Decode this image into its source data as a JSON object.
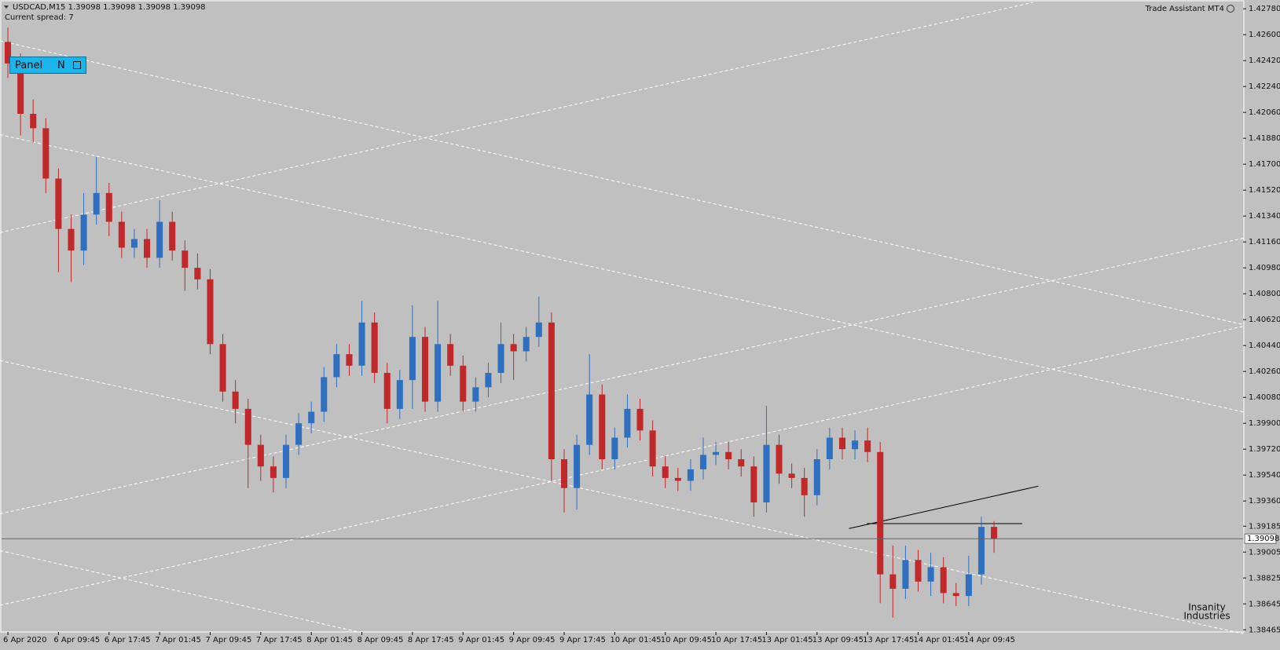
{
  "chart_data": {
    "type": "candlestick",
    "title": "USDCAD,M15  1.39098 1.39098 1.39098 1.39098",
    "subtitle": "Current spread: 7",
    "indicator": "Trade Assistant MT4",
    "panel": {
      "label": "Panel",
      "button": "N"
    },
    "watermark": [
      "Insanity",
      "Industries"
    ],
    "current_price": 1.39098,
    "up_color": "#2f6fc0",
    "down_color": "#c0282a",
    "ylim": [
      1.3845,
      1.4283
    ],
    "yticks": [
      {
        "value": 1.4278,
        "label": "1.42780"
      },
      {
        "value": 1.426,
        "label": "1.42600"
      },
      {
        "value": 1.4242,
        "label": "1.42420"
      },
      {
        "value": 1.4224,
        "label": "1.42240"
      },
      {
        "value": 1.4206,
        "label": "1.42060"
      },
      {
        "value": 1.4188,
        "label": "1.41880"
      },
      {
        "value": 1.417,
        "label": "1.41700"
      },
      {
        "value": 1.4152,
        "label": "1.41520"
      },
      {
        "value": 1.4134,
        "label": "1.41340"
      },
      {
        "value": 1.4116,
        "label": "1.41160"
      },
      {
        "value": 1.4098,
        "label": "1.40980"
      },
      {
        "value": 1.408,
        "label": "1.40800"
      },
      {
        "value": 1.4062,
        "label": "1.40620"
      },
      {
        "value": 1.4044,
        "label": "1.40440"
      },
      {
        "value": 1.4026,
        "label": "1.40260"
      },
      {
        "value": 1.4008,
        "label": "1.40080"
      },
      {
        "value": 1.399,
        "label": "1.39900"
      },
      {
        "value": 1.3972,
        "label": "1.39720"
      },
      {
        "value": 1.3954,
        "label": "1.39540"
      },
      {
        "value": 1.3936,
        "label": "1.39360"
      },
      {
        "value": 1.39185,
        "label": "1.39185"
      },
      {
        "value": 1.39005,
        "label": "1.39005"
      },
      {
        "value": 1.38825,
        "label": "1.38825"
      },
      {
        "value": 1.38645,
        "label": "1.38645"
      },
      {
        "value": 1.38465,
        "label": "1.38465"
      }
    ],
    "xlim": [
      -0.5,
      97.7
    ],
    "xticks": [
      {
        "value": 0,
        "label": "6 Apr 2020"
      },
      {
        "value": 4,
        "label": "6 Apr 09:45"
      },
      {
        "value": 8,
        "label": "6 Apr 17:45"
      },
      {
        "value": 12,
        "label": "7 Apr 01:45"
      },
      {
        "value": 16,
        "label": "7 Apr 09:45"
      },
      {
        "value": 20,
        "label": "7 Apr 17:45"
      },
      {
        "value": 24,
        "label": "8 Apr 01:45"
      },
      {
        "value": 28,
        "label": "8 Apr 09:45"
      },
      {
        "value": 32,
        "label": "8 Apr 17:45"
      },
      {
        "value": 36,
        "label": "9 Apr 01:45"
      },
      {
        "value": 40,
        "label": "9 Apr 09:45"
      },
      {
        "value": 44,
        "label": "9 Apr 17:45"
      },
      {
        "value": 48,
        "label": "10 Apr 01:45"
      },
      {
        "value": 52,
        "label": "10 Apr 09:45"
      },
      {
        "value": 56,
        "label": "10 Apr 17:45"
      },
      {
        "value": 60,
        "label": "13 Apr 01:45"
      },
      {
        "value": 64,
        "label": "13 Apr 09:45"
      },
      {
        "value": 68,
        "label": "13 Apr 17:45"
      },
      {
        "value": 72,
        "label": "14 Apr 01:45"
      },
      {
        "value": 76,
        "label": "14 Apr 09:45"
      }
    ],
    "open": [
      1.4255,
      1.424,
      1.4205,
      1.4195,
      1.416,
      1.4125,
      1.411,
      1.4135,
      1.415,
      1.413,
      1.4112,
      1.4118,
      1.4105,
      1.413,
      1.411,
      1.4098,
      1.409,
      1.4045,
      1.4012,
      1.4,
      1.3975,
      1.396,
      1.3952,
      1.3975,
      1.399,
      1.3998,
      1.4022,
      1.4038,
      1.403,
      1.406,
      1.4025,
      1.4,
      1.402,
      1.405,
      1.4005,
      1.4045,
      1.403,
      1.4005,
      1.4015,
      1.4025,
      1.4045,
      1.404,
      1.405,
      1.406,
      1.3965,
      1.3945,
      1.3975,
      1.401,
      1.3965,
      1.398,
      1.4,
      1.3985,
      1.396,
      1.3952,
      1.395,
      1.3958,
      1.3968,
      1.397,
      1.3965,
      1.396,
      1.3935,
      1.3975,
      1.3955,
      1.3952,
      1.394,
      1.3965,
      1.398,
      1.3972,
      1.3978,
      1.397,
      1.3885,
      1.3875,
      1.3895,
      1.388,
      1.389,
      1.3872,
      1.387,
      1.3885,
      1.3918
    ],
    "high": [
      1.4265,
      1.4247,
      1.4215,
      1.4202,
      1.4167,
      1.4135,
      1.415,
      1.4175,
      1.4157,
      1.4137,
      1.4125,
      1.4125,
      1.4145,
      1.4137,
      1.4117,
      1.4108,
      1.4097,
      1.4052,
      1.402,
      1.4007,
      1.3982,
      1.3967,
      1.3982,
      1.3997,
      1.4005,
      1.4029,
      1.4045,
      1.4045,
      1.4075,
      1.4067,
      1.4032,
      1.4027,
      1.4072,
      1.4057,
      1.4075,
      1.4052,
      1.4037,
      1.4022,
      1.4032,
      1.406,
      1.4052,
      1.4057,
      1.4078,
      1.4067,
      1.3972,
      1.3982,
      1.4038,
      1.4017,
      1.3987,
      1.401,
      1.4007,
      1.3992,
      1.3967,
      1.3959,
      1.3965,
      1.398,
      1.3977,
      1.3977,
      1.3972,
      1.3967,
      1.4002,
      1.3982,
      1.3962,
      1.3959,
      1.3972,
      1.3987,
      1.3987,
      1.3985,
      1.3987,
      1.3977,
      1.3905,
      1.3905,
      1.3902,
      1.39,
      1.3897,
      1.3879,
      1.3898,
      1.3925,
      1.3922
    ],
    "low": [
      1.423,
      1.419,
      1.4185,
      1.415,
      1.4095,
      1.4088,
      1.41,
      1.4128,
      1.412,
      1.4105,
      1.4105,
      1.4098,
      1.4098,
      1.4103,
      1.4082,
      1.4083,
      1.4038,
      1.4005,
      1.399,
      1.3945,
      1.395,
      1.3942,
      1.3945,
      1.3968,
      1.3983,
      1.3991,
      1.4015,
      1.4023,
      1.4023,
      1.4018,
      1.399,
      1.3993,
      1.4,
      1.3998,
      1.3998,
      1.4023,
      1.3998,
      1.3998,
      1.4008,
      1.4018,
      1.402,
      1.4033,
      1.4043,
      1.395,
      1.3928,
      1.393,
      1.3968,
      1.3958,
      1.3958,
      1.3973,
      1.3978,
      1.3953,
      1.3945,
      1.3943,
      1.3943,
      1.3951,
      1.3961,
      1.3958,
      1.3953,
      1.3925,
      1.3928,
      1.3948,
      1.3945,
      1.3925,
      1.3933,
      1.3958,
      1.3965,
      1.3965,
      1.3963,
      1.3865,
      1.3855,
      1.3868,
      1.3873,
      1.387,
      1.3865,
      1.3863,
      1.3863,
      1.3878,
      1.39
    ],
    "close": [
      1.424,
      1.4205,
      1.4195,
      1.416,
      1.4125,
      1.411,
      1.4135,
      1.415,
      1.413,
      1.4112,
      1.4118,
      1.4105,
      1.413,
      1.411,
      1.4098,
      1.409,
      1.4045,
      1.4012,
      1.4,
      1.3975,
      1.396,
      1.3952,
      1.3975,
      1.399,
      1.3998,
      1.4022,
      1.4038,
      1.403,
      1.406,
      1.4025,
      1.4,
      1.402,
      1.405,
      1.4005,
      1.4045,
      1.403,
      1.4005,
      1.4015,
      1.4025,
      1.4045,
      1.404,
      1.405,
      1.406,
      1.3965,
      1.3945,
      1.3975,
      1.401,
      1.3965,
      1.398,
      1.4,
      1.3985,
      1.396,
      1.3952,
      1.395,
      1.3958,
      1.3968,
      1.397,
      1.3965,
      1.396,
      1.3935,
      1.3975,
      1.3955,
      1.3952,
      1.394,
      1.3965,
      1.398,
      1.3972,
      1.3978,
      1.397,
      1.3885,
      1.3875,
      1.3895,
      1.388,
      1.389,
      1.3872,
      1.387,
      1.3885,
      1.3918,
      1.39098
    ]
  }
}
